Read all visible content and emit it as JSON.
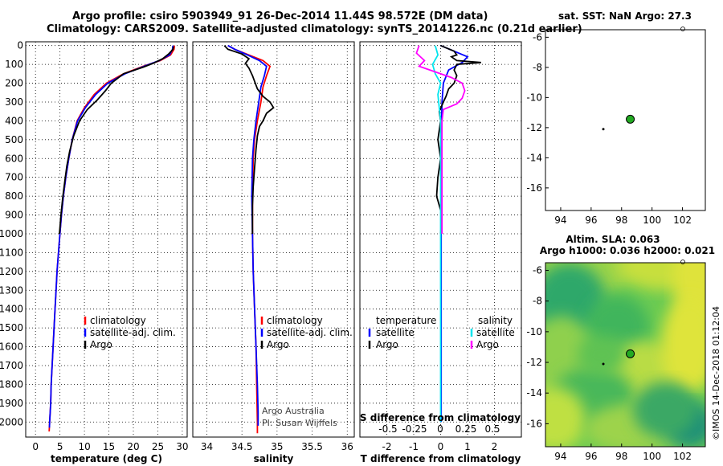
{
  "title": {
    "line1": "Argo profile: csiro 5903949_91 26-Dec-2014 11.44S 98.572E (DM data)",
    "line2": "Climatology: CARS2009. Satellite-adjusted climatology: synTS_20141226.nc (0.21d earlier)"
  },
  "colors": {
    "climatology": "#ff0000",
    "satellite": "#0000ff",
    "argo": "#000000",
    "sat_sal": "#00e5ee",
    "argo_sal": "#ff00ff",
    "dot": "#22aa22"
  },
  "depth_axis": {
    "ticks": [
      0,
      100,
      200,
      300,
      400,
      500,
      600,
      700,
      800,
      900,
      1000,
      1100,
      1200,
      1300,
      1400,
      1500,
      1600,
      1700,
      1800,
      1900,
      2000
    ]
  },
  "chart_data": [
    {
      "type": "line",
      "name": "temperature",
      "xlabel": "temperature (deg C)",
      "xlim": [
        -2,
        31
      ],
      "ylim": [
        2080,
        -20
      ],
      "xticks": [
        0,
        5,
        10,
        15,
        20,
        25,
        30
      ],
      "legend": [
        "climatology",
        "satellite-adj. clim.",
        "Argo"
      ],
      "series": [
        {
          "name": "climatology",
          "color": "#ff0000",
          "points": [
            [
              28.4,
              0
            ],
            [
              28.3,
              20
            ],
            [
              27.6,
              50
            ],
            [
              25.5,
              80
            ],
            [
              22,
              110
            ],
            [
              18,
              150
            ],
            [
              14.5,
              200
            ],
            [
              12,
              260
            ],
            [
              10,
              330
            ],
            [
              8.5,
              400
            ],
            [
              7.5,
              500
            ],
            [
              6.8,
              600
            ],
            [
              6.2,
              700
            ],
            [
              5.7,
              800
            ],
            [
              5.3,
              900
            ],
            [
              5,
              1000
            ],
            [
              4.7,
              1100
            ],
            [
              4.4,
              1200
            ],
            [
              4.2,
              1300
            ],
            [
              4,
              1400
            ],
            [
              3.8,
              1500
            ],
            [
              3.6,
              1600
            ],
            [
              3.4,
              1700
            ],
            [
              3.2,
              1800
            ],
            [
              3.1,
              1900
            ],
            [
              2.9,
              2000
            ],
            [
              2.8,
              2050
            ]
          ]
        },
        {
          "name": "satellite-adj. clim.",
          "color": "#0000ff",
          "points": [
            [
              28.1,
              0
            ],
            [
              28,
              20
            ],
            [
              27.4,
              50
            ],
            [
              25.3,
              80
            ],
            [
              22.2,
              110
            ],
            [
              18.3,
              150
            ],
            [
              14.8,
              200
            ],
            [
              12.3,
              260
            ],
            [
              10.2,
              330
            ],
            [
              8.6,
              400
            ],
            [
              7.5,
              500
            ],
            [
              6.8,
              600
            ],
            [
              6.2,
              700
            ],
            [
              5.7,
              800
            ],
            [
              5.3,
              900
            ],
            [
              5,
              1000
            ],
            [
              4.7,
              1100
            ],
            [
              4.4,
              1200
            ],
            [
              4.2,
              1300
            ],
            [
              4,
              1400
            ],
            [
              3.8,
              1500
            ],
            [
              3.6,
              1600
            ],
            [
              3.4,
              1700
            ],
            [
              3.2,
              1800
            ],
            [
              3.1,
              1900
            ],
            [
              2.9,
              2000
            ],
            [
              2.85,
              2030
            ]
          ]
        },
        {
          "name": "Argo",
          "color": "#000000",
          "points": [
            [
              28.2,
              5
            ],
            [
              28.1,
              20
            ],
            [
              27.2,
              45
            ],
            [
              26,
              70
            ],
            [
              24,
              95
            ],
            [
              22,
              115
            ],
            [
              18,
              150
            ],
            [
              15.5,
              200
            ],
            [
              14.3,
              240
            ],
            [
              12.6,
              290
            ],
            [
              10.6,
              340
            ],
            [
              9,
              400
            ],
            [
              7.8,
              480
            ],
            [
              7,
              560
            ],
            [
              6.4,
              640
            ],
            [
              6,
              720
            ],
            [
              5.6,
              800
            ],
            [
              5.2,
              900
            ],
            [
              4.9,
              1000
            ]
          ]
        }
      ]
    },
    {
      "type": "line",
      "name": "salinity",
      "xlabel": "salinity",
      "xlim": [
        33.8,
        36.1
      ],
      "ylim": [
        2080,
        -20
      ],
      "xticks": [
        34,
        34.5,
        35,
        35.5,
        36
      ],
      "legend": [
        "climatology",
        "satellite-adj. clim.",
        "Argo"
      ],
      "annotation": [
        "Argo Australia",
        "PI: Susan Wijffels"
      ],
      "series": [
        {
          "name": "climatology",
          "color": "#ff0000",
          "points": [
            [
              34.3,
              0
            ],
            [
              34.4,
              20
            ],
            [
              34.6,
              50
            ],
            [
              34.8,
              80
            ],
            [
              34.9,
              110
            ],
            [
              34.85,
              160
            ],
            [
              34.8,
              220
            ],
            [
              34.77,
              300
            ],
            [
              34.72,
              400
            ],
            [
              34.68,
              500
            ],
            [
              34.66,
              600
            ],
            [
              34.65,
              800
            ],
            [
              34.65,
              1000
            ],
            [
              34.66,
              1200
            ],
            [
              34.68,
              1400
            ],
            [
              34.7,
              1600
            ],
            [
              34.71,
              1800
            ],
            [
              34.72,
              2000
            ],
            [
              34.72,
              2060
            ]
          ]
        },
        {
          "name": "satellite-adj. clim.",
          "color": "#0000ff",
          "points": [
            [
              34.3,
              0
            ],
            [
              34.4,
              20
            ],
            [
              34.58,
              50
            ],
            [
              34.75,
              80
            ],
            [
              34.85,
              110
            ],
            [
              34.82,
              160
            ],
            [
              34.77,
              220
            ],
            [
              34.74,
              300
            ],
            [
              34.7,
              400
            ],
            [
              34.67,
              500
            ],
            [
              34.65,
              600
            ],
            [
              34.64,
              800
            ],
            [
              34.65,
              1000
            ],
            [
              34.66,
              1200
            ],
            [
              34.68,
              1400
            ],
            [
              34.7,
              1600
            ],
            [
              34.72,
              1800
            ],
            [
              34.73,
              1950
            ],
            [
              34.73,
              2020
            ]
          ]
        },
        {
          "name": "Argo",
          "color": "#000000",
          "points": [
            [
              34.25,
              0
            ],
            [
              34.3,
              20
            ],
            [
              34.5,
              45
            ],
            [
              34.6,
              70
            ],
            [
              34.55,
              95
            ],
            [
              34.6,
              120
            ],
            [
              34.65,
              160
            ],
            [
              34.68,
              190
            ],
            [
              34.72,
              230
            ],
            [
              34.8,
              270
            ],
            [
              34.9,
              300
            ],
            [
              34.95,
              330
            ],
            [
              34.85,
              360
            ],
            [
              34.8,
              400
            ],
            [
              34.75,
              430
            ],
            [
              34.72,
              480
            ],
            [
              34.7,
              550
            ],
            [
              34.68,
              650
            ],
            [
              34.66,
              750
            ],
            [
              34.65,
              850
            ],
            [
              34.65,
              1000
            ]
          ]
        }
      ]
    },
    {
      "type": "line",
      "name": "difference",
      "xlabel": "T difference from climatology",
      "xlabel2": "S difference from climatology",
      "xlim": [
        -3,
        3
      ],
      "ylim": [
        2080,
        -20
      ],
      "xticks": [
        -2,
        -1,
        0,
        1,
        2
      ],
      "xticks2": [
        "-0.5",
        "-0.25",
        "0",
        "0.25",
        "0.5"
      ],
      "legend_left": [
        "temperature",
        "satellite",
        "Argo"
      ],
      "legend_right": [
        "salinity",
        "satellite",
        "Argo"
      ],
      "series": [
        {
          "name": "T satellite",
          "color": "#0000ff",
          "points": [
            [
              0,
              0
            ],
            [
              0.5,
              30
            ],
            [
              1,
              60
            ],
            [
              0.8,
              90
            ],
            [
              0.3,
              130
            ],
            [
              0.1,
              200
            ],
            [
              0.05,
              300
            ],
            [
              0.02,
              500
            ],
            [
              0.02,
              1000
            ],
            [
              0.02,
              1500
            ],
            [
              0.02,
              2000
            ]
          ]
        },
        {
          "name": "T Argo",
          "color": "#000000",
          "points": [
            [
              0,
              0
            ],
            [
              0.5,
              30
            ],
            [
              0.6,
              50
            ],
            [
              0.4,
              60
            ],
            [
              0.6,
              80
            ],
            [
              1.5,
              90
            ],
            [
              0.6,
              100
            ],
            [
              0.5,
              130
            ],
            [
              0.6,
              160
            ],
            [
              0.5,
              200
            ],
            [
              0.3,
              230
            ],
            [
              0.2,
              270
            ],
            [
              0.1,
              300
            ],
            [
              -0.05,
              350
            ],
            [
              0,
              400
            ],
            [
              -0.1,
              500
            ],
            [
              0,
              600
            ],
            [
              -0.1,
              700
            ],
            [
              -0.15,
              800
            ],
            [
              0.05,
              900
            ],
            [
              0,
              1000
            ]
          ]
        },
        {
          "name": "S satellite",
          "color": "#00e5ee",
          "points": [
            [
              -0.2,
              0
            ],
            [
              -0.1,
              50
            ],
            [
              -0.3,
              100
            ],
            [
              -0.2,
              150
            ],
            [
              0,
              200
            ],
            [
              -0.1,
              260
            ],
            [
              -0.05,
              330
            ],
            [
              0,
              400
            ],
            [
              0,
              600
            ],
            [
              0,
              1000
            ],
            [
              0,
              1500
            ],
            [
              0,
              2000
            ]
          ]
        },
        {
          "name": "S Argo",
          "color": "#ff00ff",
          "points": [
            [
              -0.8,
              0
            ],
            [
              -0.9,
              40
            ],
            [
              -0.6,
              80
            ],
            [
              -0.8,
              110
            ],
            [
              -0.4,
              130
            ],
            [
              0.4,
              170
            ],
            [
              0.8,
              200
            ],
            [
              0.9,
              240
            ],
            [
              0.8,
              280
            ],
            [
              0.6,
              310
            ],
            [
              0.1,
              340
            ],
            [
              0.05,
              400
            ],
            [
              0.05,
              600
            ],
            [
              0.05,
              1000
            ]
          ]
        }
      ]
    },
    {
      "type": "scatter",
      "name": "sst-map",
      "title": "sat. SST: NaN Argo: 27.3",
      "xlim": [
        93,
        103.5
      ],
      "ylim": [
        -17.5,
        -5.5
      ],
      "xticks": [
        94,
        96,
        98,
        100,
        102
      ],
      "yticks": [
        -6,
        -8,
        -10,
        -12,
        -14,
        -16
      ],
      "points": [
        {
          "x": 98.57,
          "y": -11.44,
          "role": "argo-position"
        },
        {
          "x": 96.8,
          "y": -12.1,
          "role": "track"
        }
      ]
    },
    {
      "type": "heatmap",
      "name": "sla-map",
      "title": "Altim. SLA: 0.063",
      "subtitle": "Argo h1000: 0.036 h2000: 0.021",
      "xlim": [
        93,
        103.5
      ],
      "ylim": [
        -17.5,
        -5.5
      ],
      "xticks": [
        94,
        96,
        98,
        100,
        102
      ],
      "yticks": [
        -6,
        -8,
        -10,
        -12,
        -14,
        -16
      ],
      "points": [
        {
          "x": 98.57,
          "y": -11.44,
          "role": "argo-position"
        },
        {
          "x": 96.8,
          "y": -12.1,
          "role": "track"
        }
      ]
    }
  ],
  "footer": {
    "watermark": "©IMOS 14-Dec-2018 01:12:04"
  }
}
